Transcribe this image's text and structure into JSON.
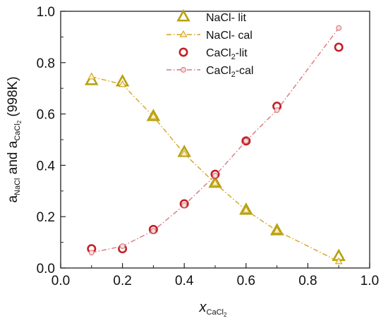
{
  "chart_data": {
    "type": "scatter",
    "xlabel": {
      "main": "x",
      "sub": "CaCl",
      "sub2": "2"
    },
    "ylabel": {
      "a1": "a",
      "s1": "NaCl",
      "and": " and ",
      "a2": "a",
      "s2": "CaCl",
      "s2b": "2",
      "tail": " (998K)"
    },
    "xlim": [
      0.0,
      1.0
    ],
    "ylim": [
      0.0,
      1.0
    ],
    "xticks": [
      "0.0",
      "0.2",
      "0.4",
      "0.6",
      "0.8",
      "1.0"
    ],
    "yticks": [
      "0.0",
      "0.2",
      "0.4",
      "0.6",
      "0.8",
      "1.0"
    ],
    "grid": false,
    "legend": "top-center",
    "series": [
      {
        "name": "NaCl- lit",
        "style": "marker",
        "marker": "triangle",
        "color": "#b5a210",
        "x": [
          0.1,
          0.2,
          0.3,
          0.4,
          0.5,
          0.6,
          0.7,
          0.9
        ],
        "y": [
          0.73,
          0.725,
          0.59,
          0.45,
          0.33,
          0.225,
          0.145,
          0.045
        ]
      },
      {
        "name": "NaCl- cal",
        "style": "dashdot",
        "marker": "small-triangle",
        "color": "#d4a41c",
        "x": [
          0.1,
          0.2,
          0.3,
          0.4,
          0.5,
          0.6,
          0.7,
          0.9
        ],
        "y": [
          0.745,
          0.715,
          0.59,
          0.445,
          0.33,
          0.225,
          0.145,
          0.025
        ]
      },
      {
        "name": "CaCl2-lit",
        "label_main": "CaCl",
        "label_sub": "2",
        "label_tail": "-lit",
        "style": "marker",
        "marker": "circle",
        "color": "#c41e24",
        "x": [
          0.1,
          0.2,
          0.3,
          0.4,
          0.5,
          0.6,
          0.7,
          0.9
        ],
        "y": [
          0.075,
          0.075,
          0.15,
          0.25,
          0.365,
          0.495,
          0.63,
          0.86
        ]
      },
      {
        "name": "CaCl2-cal",
        "label_main": "CaCl",
        "label_sub": "2",
        "label_tail": "-cal",
        "style": "dashdot",
        "marker": "small-circle",
        "color": "#d9777c",
        "x": [
          0.1,
          0.2,
          0.3,
          0.4,
          0.5,
          0.6,
          0.7,
          0.9
        ],
        "y": [
          0.06,
          0.085,
          0.145,
          0.245,
          0.36,
          0.495,
          0.615,
          0.935
        ]
      }
    ]
  }
}
